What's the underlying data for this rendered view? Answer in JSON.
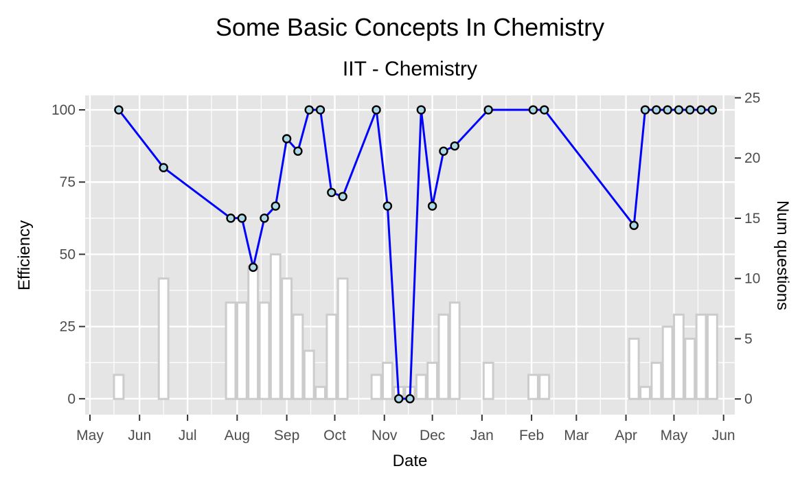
{
  "chart_data": {
    "type": "line",
    "title": "Some Basic Concepts In Chemistry",
    "subtitle": "IIT - Chemistry",
    "xlabel": "Date",
    "ylabel": "Efficiency",
    "y2label": "Num questions",
    "xlim": [
      "2018-04-28",
      "2019-06-08"
    ],
    "ylim": [
      -5.5,
      105
    ],
    "y2lim": [
      -1.3,
      25.2
    ],
    "x_ticks": [
      {
        "date": "2018-05-01",
        "label": "May"
      },
      {
        "date": "2018-06-01",
        "label": "Jun"
      },
      {
        "date": "2018-07-01",
        "label": "Jul"
      },
      {
        "date": "2018-08-01",
        "label": "Aug"
      },
      {
        "date": "2018-09-01",
        "label": "Sep"
      },
      {
        "date": "2018-10-01",
        "label": "Oct"
      },
      {
        "date": "2018-11-01",
        "label": "Nov"
      },
      {
        "date": "2018-12-01",
        "label": "Dec"
      },
      {
        "date": "2019-01-01",
        "label": "Jan"
      },
      {
        "date": "2019-02-01",
        "label": "Feb"
      },
      {
        "date": "2019-03-01",
        "label": "Mar"
      },
      {
        "date": "2019-04-01",
        "label": "Apr"
      },
      {
        "date": "2019-05-01",
        "label": "May"
      },
      {
        "date": "2019-06-01",
        "label": "Jun"
      }
    ],
    "y_ticks": [
      0,
      25,
      50,
      75,
      100
    ],
    "y2_ticks": [
      0,
      5,
      10,
      15,
      20,
      25
    ],
    "colors": {
      "line": "#0000ff",
      "point_fill": "#add8e6",
      "point_stroke": "#000000",
      "bar_stroke": "#cccccc",
      "panel": "#e5e5e5",
      "grid": "#ffffff"
    },
    "series": [
      {
        "type": "line",
        "points": [
          {
            "x": "2018-05-19",
            "y": 100
          },
          {
            "x": "2018-06-16",
            "y": 80
          },
          {
            "x": "2018-07-28",
            "y": 62.5
          },
          {
            "x": "2018-08-04",
            "y": 62.5
          },
          {
            "x": "2018-08-11",
            "y": 45.5
          },
          {
            "x": "2018-08-18",
            "y": 62.5
          },
          {
            "x": "2018-08-25",
            "y": 66.7
          },
          {
            "x": "2018-09-01",
            "y": 90
          },
          {
            "x": "2018-09-08",
            "y": 85.7
          },
          {
            "x": "2018-09-15",
            "y": 100
          },
          {
            "x": "2018-09-22",
            "y": 100
          },
          {
            "x": "2018-09-29",
            "y": 71.4
          },
          {
            "x": "2018-10-06",
            "y": 70
          },
          {
            "x": "2018-10-27",
            "y": 100
          },
          {
            "x": "2018-11-03",
            "y": 66.7
          },
          {
            "x": "2018-11-10",
            "y": 0
          },
          {
            "x": "2018-11-17",
            "y": 0
          },
          {
            "x": "2018-11-24",
            "y": 100
          },
          {
            "x": "2018-12-01",
            "y": 66.7
          },
          {
            "x": "2018-12-08",
            "y": 85.7
          },
          {
            "x": "2018-12-15",
            "y": 87.5
          },
          {
            "x": "2019-01-05",
            "y": 100
          },
          {
            "x": "2019-02-02",
            "y": 100
          },
          {
            "x": "2019-02-09",
            "y": 100
          },
          {
            "x": "2019-04-06",
            "y": 60
          },
          {
            "x": "2019-04-13",
            "y": 100
          },
          {
            "x": "2019-04-20",
            "y": 100
          },
          {
            "x": "2019-04-27",
            "y": 100
          },
          {
            "x": "2019-05-04",
            "y": 100
          },
          {
            "x": "2019-05-11",
            "y": 100
          },
          {
            "x": "2019-05-18",
            "y": 100
          },
          {
            "x": "2019-05-25",
            "y": 100
          }
        ]
      },
      {
        "type": "bar",
        "axis": "right",
        "bars": [
          {
            "x": "2018-05-19",
            "y": 2
          },
          {
            "x": "2018-06-16",
            "y": 10
          },
          {
            "x": "2018-07-28",
            "y": 8
          },
          {
            "x": "2018-08-04",
            "y": 8
          },
          {
            "x": "2018-08-11",
            "y": 11
          },
          {
            "x": "2018-08-18",
            "y": 8
          },
          {
            "x": "2018-08-25",
            "y": 12
          },
          {
            "x": "2018-09-01",
            "y": 10
          },
          {
            "x": "2018-09-08",
            "y": 7
          },
          {
            "x": "2018-09-15",
            "y": 4
          },
          {
            "x": "2018-09-22",
            "y": 1
          },
          {
            "x": "2018-09-29",
            "y": 7
          },
          {
            "x": "2018-10-06",
            "y": 10
          },
          {
            "x": "2018-10-27",
            "y": 2
          },
          {
            "x": "2018-11-03",
            "y": 3
          },
          {
            "x": "2018-11-10",
            "y": 1
          },
          {
            "x": "2018-11-17",
            "y": 1
          },
          {
            "x": "2018-11-24",
            "y": 2
          },
          {
            "x": "2018-12-01",
            "y": 3
          },
          {
            "x": "2018-12-08",
            "y": 7
          },
          {
            "x": "2018-12-15",
            "y": 8
          },
          {
            "x": "2019-01-05",
            "y": 3
          },
          {
            "x": "2019-02-02",
            "y": 2
          },
          {
            "x": "2019-02-09",
            "y": 2
          },
          {
            "x": "2019-04-06",
            "y": 5
          },
          {
            "x": "2019-04-13",
            "y": 1
          },
          {
            "x": "2019-04-20",
            "y": 3
          },
          {
            "x": "2019-04-27",
            "y": 6
          },
          {
            "x": "2019-05-04",
            "y": 7
          },
          {
            "x": "2019-05-11",
            "y": 5
          },
          {
            "x": "2019-05-18",
            "y": 7
          },
          {
            "x": "2019-05-25",
            "y": 7
          }
        ]
      }
    ],
    "grid": true,
    "legend": "none"
  }
}
